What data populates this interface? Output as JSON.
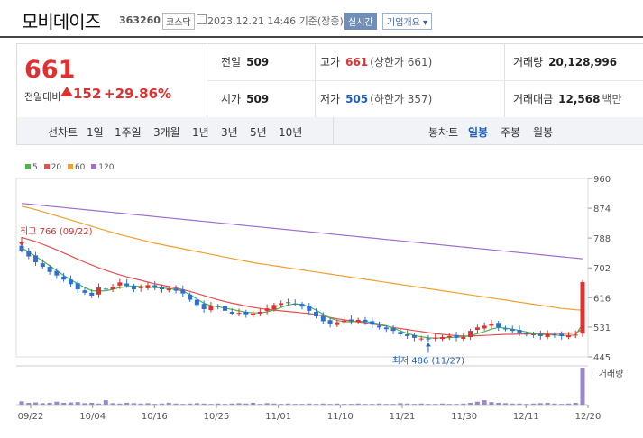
{
  "header": {
    "name": "모비데이즈",
    "code": "363260",
    "market": "코스닥",
    "datetime": "2023.12.21 14:46  기준(장중)",
    "realtime_button": "실시간",
    "company_button": "기업개요"
  },
  "summary": {
    "price": "661",
    "diff_label": "전일대비",
    "diff_value": "152",
    "diff_rate": "+29.86%",
    "prev_label": "전일",
    "prev_value": "509",
    "open_label": "시가",
    "open_value": "509",
    "high_label": "고가",
    "high_value": "661",
    "high_sub": "(상한가 661)",
    "low_label": "저가",
    "low_value": "505",
    "low_sub": "(하한가 357)",
    "volume_label": "거래량",
    "volume_value": "20,128,996",
    "amount_label": "거래대금",
    "amount_value": "12,568",
    "amount_unit": "백만"
  },
  "tabs": {
    "line_label": "선차트",
    "line_tabs": [
      "1일",
      "1주일",
      "3개월",
      "1년",
      "3년",
      "5년",
      "10년"
    ],
    "candle_label": "봉차트",
    "candle_tabs": [
      "일봉",
      "주봉",
      "월봉"
    ],
    "active_candle": "일봉"
  },
  "chart_data": {
    "type": "candlestick",
    "legend": [
      {
        "name": "5",
        "color": "#4db34d"
      },
      {
        "name": "20",
        "color": "#e65050"
      },
      {
        "name": "60",
        "color": "#f0a030"
      },
      {
        "name": "120",
        "color": "#a070d0"
      }
    ],
    "y_ticks": [
      960,
      874,
      788,
      702,
      616,
      531,
      445
    ],
    "ylim": [
      445,
      960
    ],
    "x_labels": [
      "09/22",
      "10/04",
      "10/16",
      "10/25",
      "11/01",
      "11/10",
      "11/21",
      "11/30",
      "12/11",
      "12/20"
    ],
    "annotation_high": "최고 766 (09/22)",
    "annotation_low": "최저 486 (11/27)",
    "volume_label": "거래량",
    "colors": {
      "up": "#e03030",
      "down": "#2f6fd0"
    },
    "closes": [
      752,
      735,
      718,
      705,
      690,
      680,
      668,
      655,
      640,
      630,
      622,
      645,
      640,
      648,
      660,
      650,
      640,
      646,
      652,
      645,
      640,
      642,
      636,
      628,
      610,
      595,
      583,
      592,
      590,
      578,
      570,
      572,
      568,
      570,
      575,
      585,
      595,
      600,
      602,
      598,
      590,
      578,
      562,
      548,
      540,
      545,
      550,
      548,
      552,
      545,
      538,
      530,
      525,
      520,
      510,
      505,
      500,
      498,
      497,
      500,
      502,
      505,
      500,
      502,
      520,
      530,
      535,
      540,
      530,
      525,
      520,
      515,
      510,
      508,
      505,
      510,
      508,
      505,
      507,
      509,
      661
    ],
    "ma5": [
      760,
      748,
      735,
      722,
      708,
      694,
      680,
      668,
      656,
      645,
      636,
      635,
      636,
      640,
      645,
      648,
      650,
      648,
      646,
      645,
      644,
      642,
      640,
      635,
      625,
      612,
      600,
      593,
      590,
      586,
      582,
      578,
      574,
      572,
      572,
      575,
      580,
      588,
      595,
      598,
      596,
      590,
      580,
      568,
      557,
      550,
      547,
      546,
      548,
      547,
      544,
      540,
      535,
      528,
      520,
      513,
      507,
      503,
      500,
      499,
      500,
      501,
      502,
      503,
      506,
      512,
      518,
      525,
      530,
      528,
      525,
      521,
      517,
      513,
      510,
      509,
      508,
      507,
      507,
      508,
      540
    ],
    "ma20": [
      790,
      784,
      778,
      770,
      762,
      754,
      745,
      736,
      727,
      718,
      710,
      702,
      695,
      688,
      682,
      676,
      671,
      666,
      661,
      656,
      652,
      648,
      644,
      639,
      634,
      628,
      622,
      616,
      610,
      605,
      600,
      596,
      592,
      588,
      585,
      582,
      580,
      578,
      576,
      574,
      572,
      570,
      567,
      563,
      559,
      555,
      552,
      549,
      546,
      543,
      540,
      537,
      534,
      530,
      527,
      524,
      521,
      518,
      515,
      512,
      510,
      508,
      506,
      505,
      505,
      506,
      507,
      508,
      509,
      510,
      510,
      511,
      511,
      511,
      512,
      512,
      512,
      513,
      513,
      514,
      525
    ],
    "ma60": [
      880,
      875,
      870,
      864,
      858,
      852,
      846,
      840,
      834,
      828,
      822,
      816,
      810,
      804,
      798,
      793,
      788,
      783,
      778,
      773,
      769,
      765,
      761,
      757,
      753,
      749,
      745,
      741,
      737,
      733,
      729,
      725,
      721,
      717,
      714,
      711,
      708,
      705,
      702,
      699,
      696,
      693,
      690,
      687,
      684,
      681,
      678,
      675,
      672,
      669,
      666,
      663,
      660,
      657,
      654,
      651,
      648,
      645,
      642,
      639,
      636,
      633,
      630,
      627,
      624,
      621,
      618,
      615,
      612,
      609,
      606,
      603,
      600,
      597,
      594,
      591,
      588,
      585,
      583,
      581,
      580
    ],
    "ma120": [
      888,
      886,
      884,
      882,
      880,
      878,
      876,
      874,
      872,
      870,
      868,
      866,
      864,
      862,
      860,
      858,
      856,
      854,
      852,
      850,
      848,
      846,
      844,
      842,
      840,
      838,
      836,
      834,
      832,
      830,
      828,
      826,
      824,
      822,
      820,
      818,
      816,
      814,
      812,
      810,
      808,
      806,
      804,
      802,
      800,
      798,
      796,
      794,
      792,
      790,
      788,
      786,
      784,
      782,
      780,
      778,
      776,
      774,
      772,
      770,
      768,
      766,
      764,
      762,
      760,
      758,
      756,
      754,
      752,
      750,
      748,
      746,
      744,
      742,
      740,
      738,
      736,
      734,
      732,
      730,
      728
    ],
    "volumes": [
      0.09,
      0.05,
      0.06,
      0.04,
      0.05,
      0.08,
      0.05,
      0.06,
      0.07,
      0.04,
      0.05,
      0.03,
      0.12,
      0.04,
      0.03,
      0.05,
      0.04,
      0.03,
      0.04,
      0.02,
      0.03,
      0.05,
      0.03,
      0.02,
      0.03,
      0.04,
      0.03,
      0.02,
      0.03,
      0.02,
      0.03,
      0.04,
      0.03,
      0.05,
      0.02,
      0.04,
      0.03,
      0.02,
      0.03,
      0.02,
      0.02,
      0.03,
      0.02,
      0.03,
      0.02,
      0.03,
      0.02,
      0.02,
      0.03,
      0.02,
      0.02,
      0.03,
      0.02,
      0.02,
      0.04,
      0.03,
      0.02,
      0.03,
      0.02,
      0.02,
      0.03,
      0.02,
      0.02,
      0.03,
      0.05,
      0.08,
      0.12,
      0.07,
      0.05,
      0.04,
      0.03,
      0.03,
      0.02,
      0.03,
      0.04,
      0.05,
      0.03,
      0.02,
      0.03,
      0.05,
      1.0
    ]
  }
}
